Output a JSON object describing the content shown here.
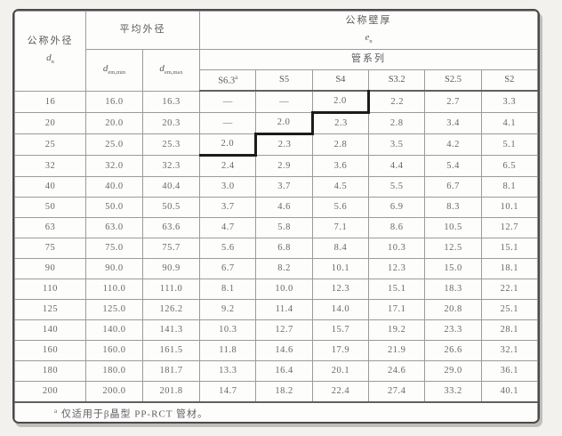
{
  "table": {
    "header": {
      "col1_title": "公称外径",
      "col1_symbol": "d",
      "col1_symbol_sub": "n",
      "avg_od_title": "平均外径",
      "d_em_min": {
        "base": "d",
        "sub": "em,min"
      },
      "d_em_max": {
        "base": "d",
        "sub": "em,max"
      },
      "wall_title": "公称壁厚",
      "wall_symbol": "e",
      "wall_symbol_sub": "n",
      "series_title": "管系列",
      "series": [
        {
          "label": "S6.3",
          "sup": "a"
        },
        {
          "label": "S5"
        },
        {
          "label": "S4"
        },
        {
          "label": "S3.2"
        },
        {
          "label": "S2.5"
        },
        {
          "label": "S2"
        }
      ]
    },
    "rows": [
      {
        "dn": "16",
        "dem_min": "16.0",
        "dem_max": "16.3",
        "values": [
          "—",
          "—",
          "2.0",
          "2.2",
          "2.7",
          "3.3"
        ]
      },
      {
        "dn": "20",
        "dem_min": "20.0",
        "dem_max": "20.3",
        "values": [
          "—",
          "2.0",
          "2.3",
          "2.8",
          "3.4",
          "4.1"
        ]
      },
      {
        "dn": "25",
        "dem_min": "25.0",
        "dem_max": "25.3",
        "values": [
          "2.0",
          "2.3",
          "2.8",
          "3.5",
          "4.2",
          "5.1"
        ]
      },
      {
        "dn": "32",
        "dem_min": "32.0",
        "dem_max": "32.3",
        "values": [
          "2.4",
          "2.9",
          "3.6",
          "4.4",
          "5.4",
          "6.5"
        ]
      },
      {
        "dn": "40",
        "dem_min": "40.0",
        "dem_max": "40.4",
        "values": [
          "3.0",
          "3.7",
          "4.5",
          "5.5",
          "6.7",
          "8.1"
        ]
      },
      {
        "dn": "50",
        "dem_min": "50.0",
        "dem_max": "50.5",
        "values": [
          "3.7",
          "4.6",
          "5.6",
          "6.9",
          "8.3",
          "10.1"
        ]
      },
      {
        "dn": "63",
        "dem_min": "63.0",
        "dem_max": "63.6",
        "values": [
          "4.7",
          "5.8",
          "7.1",
          "8.6",
          "10.5",
          "12.7"
        ]
      },
      {
        "dn": "75",
        "dem_min": "75.0",
        "dem_max": "75.7",
        "values": [
          "5.6",
          "6.8",
          "8.4",
          "10.3",
          "12.5",
          "15.1"
        ]
      },
      {
        "dn": "90",
        "dem_min": "90.0",
        "dem_max": "90.9",
        "values": [
          "6.7",
          "8.2",
          "10.1",
          "12.3",
          "15.0",
          "18.1"
        ]
      },
      {
        "dn": "110",
        "dem_min": "110.0",
        "dem_max": "111.0",
        "values": [
          "8.1",
          "10.0",
          "12.3",
          "15.1",
          "18.3",
          "22.1"
        ]
      },
      {
        "dn": "125",
        "dem_min": "125.0",
        "dem_max": "126.2",
        "values": [
          "9.2",
          "11.4",
          "14.0",
          "17.1",
          "20.8",
          "25.1"
        ]
      },
      {
        "dn": "140",
        "dem_min": "140.0",
        "dem_max": "141.3",
        "values": [
          "10.3",
          "12.7",
          "15.7",
          "19.2",
          "23.3",
          "28.1"
        ]
      },
      {
        "dn": "160",
        "dem_min": "160.0",
        "dem_max": "161.5",
        "values": [
          "11.8",
          "14.6",
          "17.9",
          "21.9",
          "26.6",
          "32.1"
        ]
      },
      {
        "dn": "180",
        "dem_min": "180.0",
        "dem_max": "181.7",
        "values": [
          "13.3",
          "16.4",
          "20.1",
          "24.6",
          "29.0",
          "36.1"
        ]
      },
      {
        "dn": "200",
        "dem_min": "200.0",
        "dem_max": "201.8",
        "values": [
          "14.7",
          "18.2",
          "22.4",
          "27.4",
          "33.2",
          "40.1"
        ]
      }
    ],
    "series_boundary_steps": [
      {
        "row": 0,
        "col": 2,
        "sides": [
          "right",
          "bottom"
        ]
      },
      {
        "row": 1,
        "col": 2,
        "sides": [
          "left"
        ]
      },
      {
        "row": 1,
        "col": 1,
        "sides": [
          "bottom"
        ]
      },
      {
        "row": 2,
        "col": 1,
        "sides": [
          "left"
        ]
      },
      {
        "row": 2,
        "col": 0,
        "sides": [
          "bottom"
        ]
      }
    ],
    "footnote": {
      "marker": "a",
      "text": " 仅适用于β晶型 PP-RCT 管材。"
    }
  }
}
